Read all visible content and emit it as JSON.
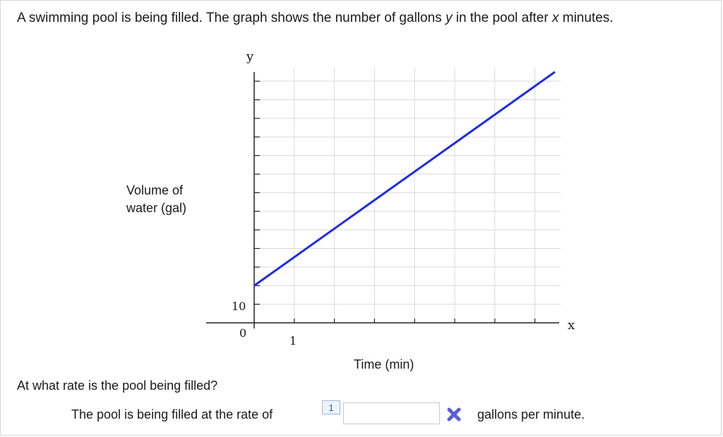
{
  "problem": {
    "prompt_parts": [
      "A swimming pool is being filled. The graph shows the number of gallons ",
      "y",
      " in the pool after ",
      "x",
      " minutes."
    ]
  },
  "graph": {
    "y_axis_name": "y",
    "x_axis_name": "x",
    "y_label_line1": "Volume of",
    "y_label_line2": "water (gal)",
    "x_label": "Time (min)",
    "origin_label": "0",
    "y_tick_label": "10",
    "x_tick_label": "1",
    "line_color": "#1f2be0"
  },
  "chart_data": {
    "type": "line",
    "title": "",
    "xlabel": "Time (min)",
    "ylabel": "Volume of water (gal)",
    "x_tick_labels": [
      "1"
    ],
    "y_tick_labels": [
      "10"
    ],
    "xlim": [
      0,
      7.5
    ],
    "ylim": [
      0,
      13.5
    ],
    "grid": true,
    "series": [
      {
        "x": [
          0,
          7.5
        ],
        "y": [
          2,
          13.5
        ]
      }
    ]
  },
  "question": {
    "text": "At what rate is the pool being filled?",
    "answer_prefix": "The pool is being filled at the rate of",
    "hint_number": "1",
    "answer_value": "",
    "units": "gallons per minute.",
    "status_icon": "x-mark-icon",
    "status_color": "#5a5ce0"
  }
}
